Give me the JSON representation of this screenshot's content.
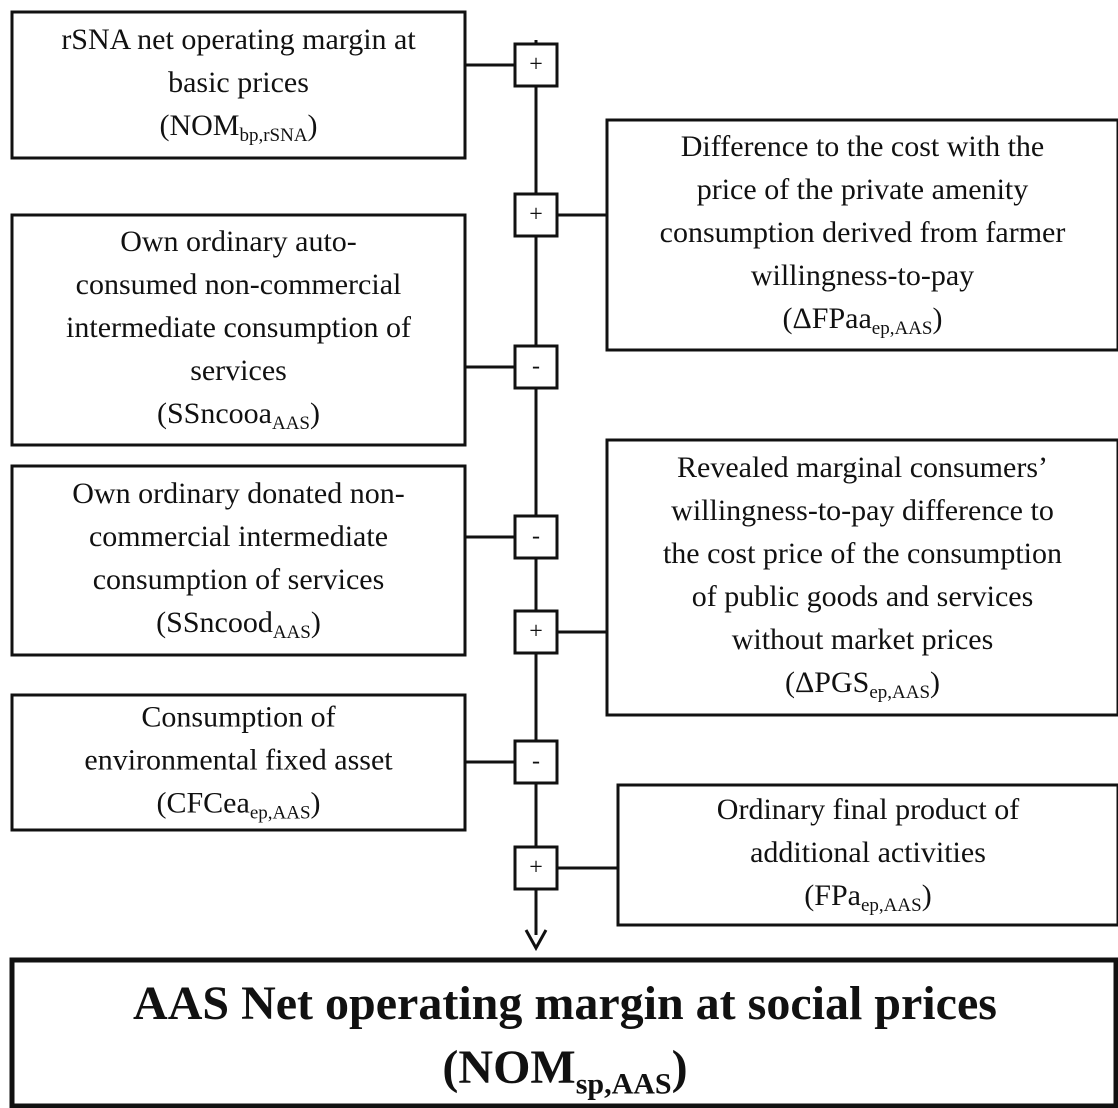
{
  "nodes": [
    {
      "lines": [
        "rSNA net operating margin at",
        "basic prices"
      ],
      "formula": {
        "base": "(NOM",
        "sub": "bp,rSNA",
        "close": ")"
      }
    },
    {
      "lines": [
        "Difference to the cost with the",
        "price of the private amenity",
        "consumption derived from farmer",
        "willingness-to-pay"
      ],
      "formula": {
        "base": "(ΔFPaa",
        "sub": "ep,AAS",
        "close": ")"
      }
    },
    {
      "lines": [
        "Own ordinary auto-",
        "consumed non-commercial",
        "intermediate consumption of",
        "services"
      ],
      "formula": {
        "base": "(SSncooa",
        "sub": "AAS",
        "close": ")"
      }
    },
    {
      "lines": [
        "Own ordinary donated non-",
        "commercial intermediate",
        "consumption of services"
      ],
      "formula": {
        "base": "(SSncood",
        "sub": "AAS",
        "close": ")"
      }
    },
    {
      "lines": [
        "Revealed marginal consumers’",
        "willingness-to-pay difference to",
        "the cost price of the consumption",
        "of public goods and services",
        "without market prices"
      ],
      "formula": {
        "base": "(ΔPGS",
        "sub": "ep,AAS",
        "close": ")"
      }
    },
    {
      "lines": [
        "Consumption of",
        "environmental fixed asset"
      ],
      "formula": {
        "base": "(CFCea",
        "sub": "ep,AAS",
        "close": ")"
      }
    },
    {
      "lines": [
        "Ordinary final product of",
        "additional activities"
      ],
      "formula": {
        "base": "(FPa",
        "sub": "ep,AAS",
        "close": ")"
      }
    }
  ],
  "operators": [
    "+",
    "+",
    "-",
    "-",
    "+",
    "-",
    "+"
  ],
  "result": {
    "lines": [
      "AAS Net operating margin at social prices"
    ],
    "formula": {
      "base": "(NOM",
      "sub": "sp,AAS",
      "close": ")"
    }
  }
}
